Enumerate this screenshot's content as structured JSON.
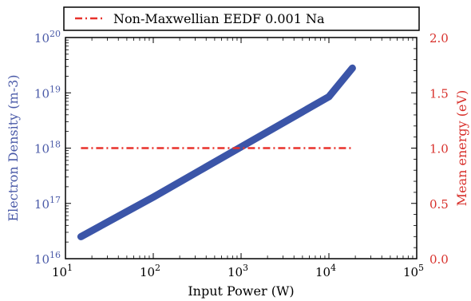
{
  "chart_data": {
    "type": "line",
    "title": "",
    "xlabel": "Input Power (W)",
    "ylabel_left": "Electron Density (m-3)",
    "ylabel_right": "Mean energy (eV)",
    "x_scale": "log",
    "y_left_scale": "log",
    "xlim": [
      10,
      100000
    ],
    "ylim_left": [
      1e+16,
      1e+20
    ],
    "ylim_right": [
      0.0,
      2.0
    ],
    "x_tick_exponents": [
      "1",
      "2",
      "3",
      "4",
      "5"
    ],
    "y_left_tick_exponents": [
      "16",
      "17",
      "18",
      "19",
      "20"
    ],
    "y_right_ticks": [
      "0.0",
      "0.5",
      "1.0",
      "1.5",
      "2.0"
    ],
    "grid": false,
    "legend_position": "top",
    "series": [
      {
        "name": "",
        "axis": "left",
        "color": "#3b55a8",
        "style": "thick-solid",
        "x": [
          15,
          100,
          1000,
          10000,
          18500
        ],
        "y": [
          2.5e+16,
          1.3e+17,
          1.05e+18,
          8.5e+18,
          2.8e+19
        ]
      },
      {
        "name": "Non-Maxwellian EEDF 0.001 Na",
        "axis": "right",
        "color": "#e8322c",
        "style": "dash-dot",
        "x": [
          15,
          18500
        ],
        "y": [
          1.0,
          1.0
        ]
      }
    ]
  },
  "colors": {
    "left_axis": "#4a5aa8",
    "right_axis": "#d8312c"
  }
}
